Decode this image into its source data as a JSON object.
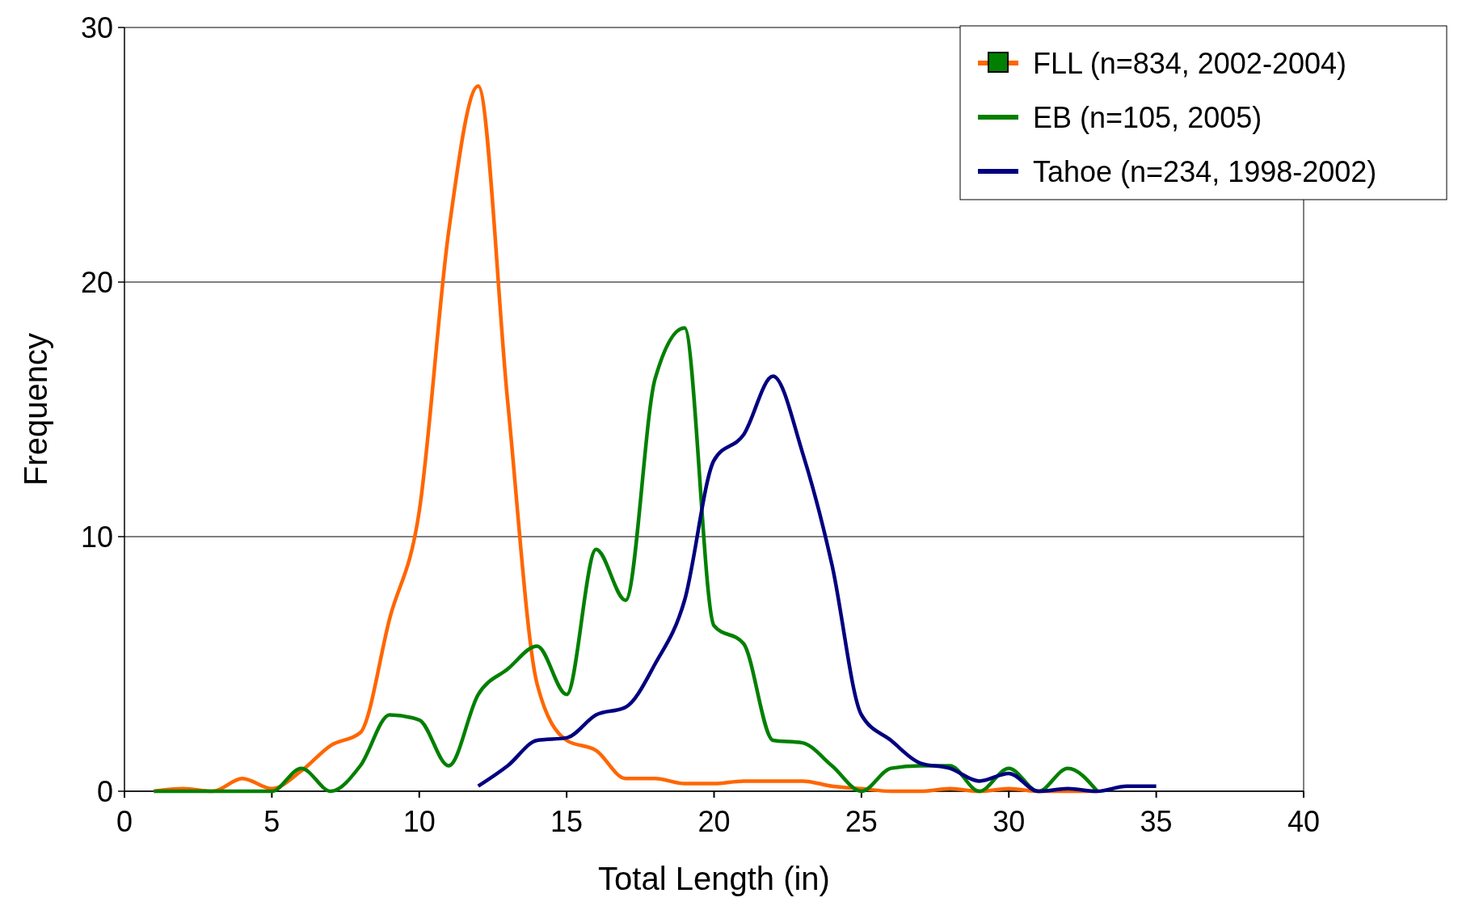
{
  "chart_data": {
    "type": "line",
    "xlabel": "Total Length (in)",
    "ylabel": "Frequency",
    "xlim": [
      0,
      40
    ],
    "xticks": [
      0,
      5,
      10,
      15,
      20,
      25,
      30,
      35,
      40
    ],
    "ylim": [
      0,
      30
    ],
    "yticks": [
      0,
      10,
      20,
      30
    ],
    "grid": "y",
    "legend": "top right",
    "line_style": "solid",
    "series": [
      {
        "name": "FLL (n=834, 2002-2004)",
        "color": "#ff6600",
        "x": [
          1,
          2,
          3,
          4,
          5,
          6,
          7,
          8,
          9,
          10,
          11,
          12,
          13,
          14,
          15,
          16,
          17,
          18,
          19,
          20,
          21,
          22,
          23,
          24,
          25,
          26,
          27,
          28,
          29,
          30,
          31,
          32,
          33
        ],
        "values": [
          0,
          0.1,
          0,
          0.5,
          0.1,
          0.8,
          1.8,
          2.3,
          6.8,
          11,
          22,
          27.7,
          15.3,
          4.2,
          2,
          1.6,
          0.5,
          0.5,
          0.3,
          0.3,
          0.4,
          0.4,
          0.4,
          0.2,
          0.1,
          0,
          0,
          0.1,
          0,
          0.1,
          0,
          0,
          0
        ]
      },
      {
        "name": "EB (n=105, 2005)",
        "color": "#008000",
        "x": [
          1,
          2,
          3,
          4,
          5,
          6,
          7,
          8,
          9,
          10,
          11,
          12,
          13,
          14,
          15,
          16,
          17,
          18,
          19,
          20,
          21,
          22,
          23,
          24,
          25,
          26,
          27,
          28,
          29,
          30,
          31,
          32,
          33
        ],
        "values": [
          0,
          0,
          0,
          0,
          0,
          0.9,
          0,
          1,
          3,
          2.8,
          1,
          3.8,
          4.8,
          5.7,
          3.8,
          9.5,
          7.5,
          16.2,
          18.2,
          6.5,
          5.8,
          2,
          1.9,
          1,
          0,
          0.9,
          1,
          1,
          0,
          0.9,
          0,
          0.9,
          0
        ]
      },
      {
        "name": "Tahoe (n=234, 1998-2002)",
        "color": "#000080",
        "x": [
          12,
          13,
          14,
          15,
          16,
          17,
          18,
          19,
          20,
          21,
          22,
          23,
          24,
          25,
          26,
          27,
          28,
          29,
          30,
          31,
          32,
          33,
          34,
          35
        ],
        "values": [
          0.2,
          1,
          2,
          2.1,
          3,
          3.3,
          5,
          7.5,
          13,
          14,
          16.3,
          13.3,
          8.9,
          3,
          2,
          1.1,
          0.9,
          0.4,
          0.7,
          0,
          0.1,
          0,
          0.2,
          0.2
        ]
      }
    ]
  }
}
